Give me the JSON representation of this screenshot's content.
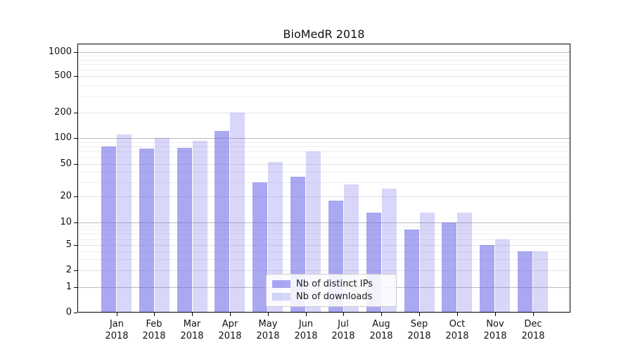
{
  "title": "BioMedR 2018",
  "chart_data": {
    "type": "bar",
    "title": "BioMedR 2018",
    "categories": [
      {
        "month": "Jan",
        "year": "2018"
      },
      {
        "month": "Feb",
        "year": "2018"
      },
      {
        "month": "Mar",
        "year": "2018"
      },
      {
        "month": "Apr",
        "year": "2018"
      },
      {
        "month": "May",
        "year": "2018"
      },
      {
        "month": "Jun",
        "year": "2018"
      },
      {
        "month": "Jul",
        "year": "2018"
      },
      {
        "month": "Aug",
        "year": "2018"
      },
      {
        "month": "Sep",
        "year": "2018"
      },
      {
        "month": "Oct",
        "year": "2018"
      },
      {
        "month": "Nov",
        "year": "2018"
      },
      {
        "month": "Dec",
        "year": "2018"
      }
    ],
    "series": [
      {
        "name": "Nb of distinct IPs",
        "color": "rgba(100,96,230,0.55)",
        "values": [
          80,
          75,
          77,
          120,
          30,
          35,
          18,
          13,
          8,
          10,
          5,
          4
        ]
      },
      {
        "name": "Nb of downloads",
        "color": "rgba(100,96,230,0.25)",
        "values": [
          110,
          100,
          92,
          200,
          53,
          70,
          28,
          25,
          13,
          13,
          6,
          4
        ]
      }
    ],
    "y_axis": {
      "scale": "symlog",
      "tick_labels": [
        "0",
        "1",
        "2",
        "5",
        "10",
        "20",
        "50",
        "100",
        "200",
        "500",
        "1000"
      ],
      "tick_values": [
        0,
        1,
        2,
        5,
        10,
        20,
        50,
        100,
        200,
        500,
        1000
      ],
      "minor_tick_values": [
        3,
        4,
        6,
        7,
        8,
        9,
        30,
        40,
        60,
        70,
        80,
        90,
        300,
        400,
        600,
        700,
        800,
        900
      ],
      "range_top": 1400
    },
    "legend_position": "lower center",
    "grid": true,
    "colors": {
      "grid_major": "#bbbbbb",
      "grid_light": "#e3e3e3",
      "grid_minor": "#eeeeee",
      "axis": "#000000"
    }
  }
}
